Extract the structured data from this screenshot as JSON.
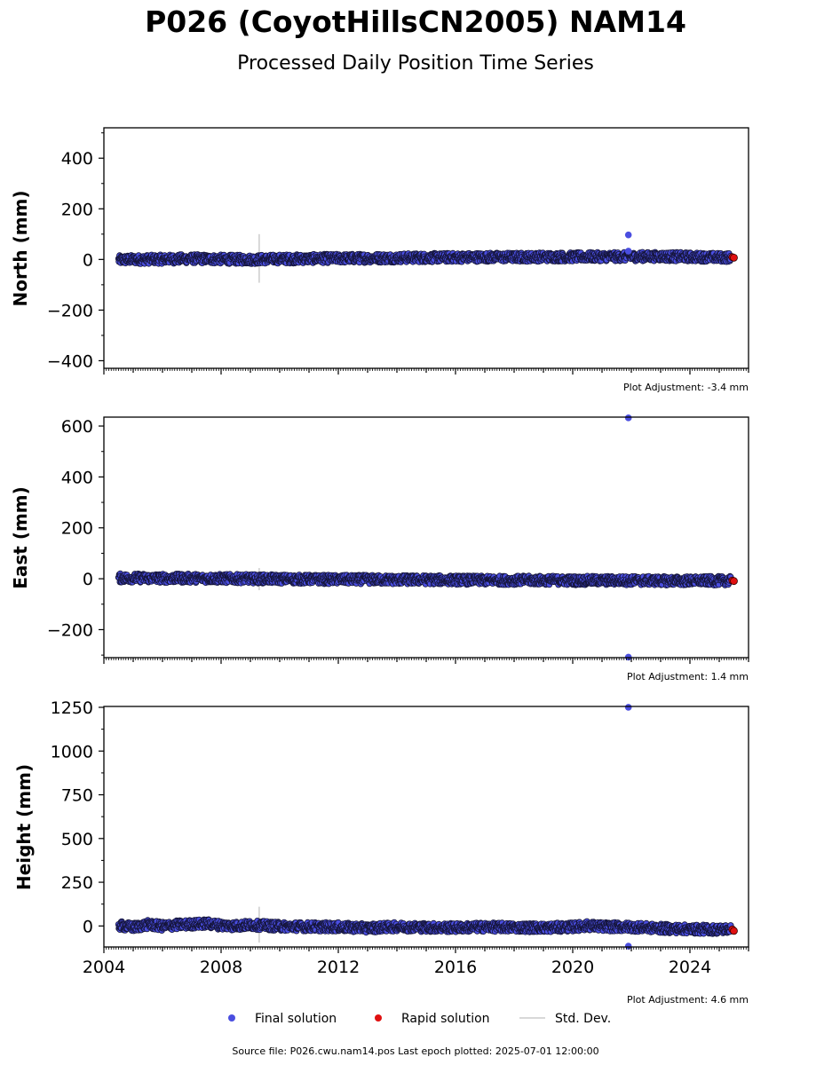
{
  "figure": {
    "title": "P026 (CoyotHillsCN2005) NAM14",
    "subtitle": "Processed Daily Position Time Series",
    "source_note": "Source file: P026.cwu.nam14.pos  Last epoch plotted: 2025-07-01 12:00:00"
  },
  "legend": {
    "placement": "bottom-center",
    "items": [
      {
        "label": "Final solution",
        "marker": "dot",
        "color": "#4a4ee0"
      },
      {
        "label": "Rapid solution",
        "marker": "dot",
        "color": "#e01010"
      },
      {
        "label": "Std. Dev.",
        "marker": "line",
        "color": "#cccccc"
      }
    ]
  },
  "colors": {
    "final": "#4a4ee0",
    "final_edge": "#15153a",
    "rapid": "#e01010",
    "stddev": "#cccccc"
  },
  "chart_data": [
    {
      "type": "scatter",
      "ylabel": "North (mm)",
      "annotation": "Plot Adjustment: -3.4 mm",
      "xlim": [
        2004.0,
        2026.0
      ],
      "ylim": [
        -430,
        520
      ],
      "yticks": [
        -400,
        -200,
        0,
        200,
        400
      ],
      "yticklabels": [
        "−400",
        "−200",
        "0",
        "200",
        "400"
      ],
      "grid": false,
      "series": [
        {
          "name": "Final solution",
          "role": "final",
          "x": [
            2004.5,
            2005.0,
            2006.0,
            2007.0,
            2008.0,
            2009.0,
            2010.0,
            2011.0,
            2012.0,
            2013.0,
            2014.0,
            2015.0,
            2016.0,
            2017.0,
            2018.0,
            2019.0,
            2020.0,
            2021.0,
            2022.0,
            2023.0,
            2024.0,
            2025.0,
            2025.4
          ],
          "y": [
            -2,
            0,
            1,
            3,
            1,
            0,
            2,
            3,
            4,
            5,
            6,
            7,
            8,
            9,
            9,
            10,
            10,
            11,
            11,
            12,
            10,
            8,
            8
          ]
        },
        {
          "name": "Final solution",
          "role": "final_outlier",
          "x": [
            2021.9,
            2021.9
          ],
          "y": [
            97,
            33
          ]
        },
        {
          "name": "Rapid solution",
          "role": "rapid",
          "x": [
            2025.45,
            2025.5
          ],
          "y": [
            9,
            7
          ]
        }
      ],
      "stddev_bars": [
        {
          "x": 2009.3,
          "low": -92,
          "high": 100
        }
      ]
    },
    {
      "type": "scatter",
      "ylabel": "East (mm)",
      "annotation": "Plot Adjustment: 1.4 mm",
      "xlim": [
        2004.0,
        2026.0
      ],
      "ylim": [
        -310,
        635
      ],
      "yticks": [
        -200,
        0,
        200,
        400,
        600
      ],
      "yticklabels": [
        "−200",
        "0",
        "200",
        "400",
        "600"
      ],
      "grid": false,
      "series": [
        {
          "name": "Final solution",
          "role": "final",
          "x": [
            2004.5,
            2005.0,
            2006.0,
            2007.0,
            2008.0,
            2009.0,
            2010.0,
            2011.0,
            2012.0,
            2013.0,
            2014.0,
            2015.0,
            2016.0,
            2017.0,
            2018.0,
            2019.0,
            2020.0,
            2021.0,
            2022.0,
            2023.0,
            2024.0,
            2025.0,
            2025.4
          ],
          "y": [
            3,
            3,
            2,
            2,
            1,
            0,
            -1,
            -2,
            -3,
            -3,
            -4,
            -4,
            -5,
            -6,
            -6,
            -6,
            -7,
            -7,
            -7,
            -8,
            -8,
            -8,
            -8
          ]
        },
        {
          "name": "Final solution",
          "role": "final_outlier",
          "x": [
            2021.9,
            2021.9
          ],
          "y": [
            632,
            -308
          ]
        },
        {
          "name": "Rapid solution",
          "role": "rapid",
          "x": [
            2025.45,
            2025.5
          ],
          "y": [
            -7,
            -9
          ]
        }
      ],
      "stddev_bars": [
        {
          "x": 2009.3,
          "low": -45,
          "high": 42
        }
      ]
    },
    {
      "type": "scatter",
      "ylabel": "Height (mm)",
      "annotation": "Plot Adjustment: 4.6 mm",
      "xlim": [
        2004.0,
        2026.0
      ],
      "ylim": [
        -120,
        1255
      ],
      "yticks": [
        0,
        250,
        500,
        750,
        1000,
        1250
      ],
      "yticklabels": [
        "0",
        "250",
        "500",
        "750",
        "1000",
        "1250"
      ],
      "xticks": [
        2004,
        2008,
        2012,
        2016,
        2020,
        2024
      ],
      "xticklabels": [
        "2004",
        "2008",
        "2012",
        "2016",
        "2020",
        "2024"
      ],
      "grid": false,
      "series": [
        {
          "name": "Final solution",
          "role": "final",
          "x": [
            2004.5,
            2005.0,
            2005.5,
            2006.0,
            2006.5,
            2007.0,
            2007.5,
            2008.0,
            2008.5,
            2009.0,
            2010.0,
            2011.0,
            2012.0,
            2013.0,
            2014.0,
            2015.0,
            2016.0,
            2017.0,
            2018.0,
            2019.0,
            2020.0,
            2020.5,
            2021.0,
            2022.0,
            2023.0,
            2024.0,
            2025.0,
            2025.4
          ],
          "y": [
            3,
            -8,
            8,
            -2,
            6,
            10,
            14,
            4,
            0,
            6,
            -2,
            -4,
            -6,
            -12,
            -4,
            -8,
            -10,
            -6,
            -8,
            -10,
            -6,
            2,
            -4,
            -6,
            -14,
            -18,
            -20,
            -16
          ]
        },
        {
          "name": "Final solution",
          "role": "final_outlier",
          "x": [
            2021.9,
            2021.9
          ],
          "y": [
            1250,
            -115
          ]
        },
        {
          "name": "Rapid solution",
          "role": "rapid",
          "x": [
            2025.45,
            2025.5
          ],
          "y": [
            -20,
            -28
          ]
        }
      ],
      "stddev_bars": [
        {
          "x": 2009.3,
          "low": -95,
          "high": 110
        }
      ]
    }
  ]
}
